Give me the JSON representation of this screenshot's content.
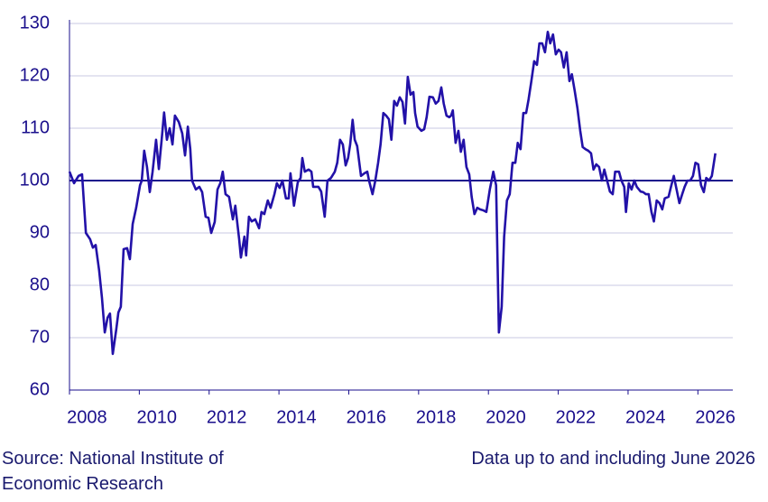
{
  "chart_data": {
    "type": "line",
    "source": "Source: National Institute of Economic Research",
    "note": "Data up to and including June 2026",
    "color": "#2211a8",
    "grid": true,
    "reference_line": 100,
    "xlim": [
      2008,
      2027
    ],
    "xticks": [
      2008,
      2010,
      2012,
      2014,
      2016,
      2018,
      2020,
      2022,
      2024,
      2026
    ],
    "ylim": [
      60,
      130
    ],
    "yticks": [
      60,
      70,
      80,
      90,
      100,
      110,
      120,
      130
    ],
    "x": [
      2008.0,
      2008.13,
      2008.26,
      2008.36,
      2008.47,
      2008.59,
      2008.67,
      2008.75,
      2008.85,
      2008.93,
      2009.01,
      2009.09,
      2009.16,
      2009.24,
      2009.34,
      2009.4,
      2009.47,
      2009.55,
      2009.65,
      2009.73,
      2009.81,
      2009.91,
      2010.02,
      2010.07,
      2010.14,
      2010.22,
      2010.3,
      2010.38,
      2010.48,
      2010.56,
      2010.64,
      2010.71,
      2010.79,
      2010.87,
      2010.95,
      2011.02,
      2011.13,
      2011.23,
      2011.31,
      2011.39,
      2011.46,
      2011.51,
      2011.62,
      2011.72,
      2011.8,
      2011.9,
      2011.98,
      2012.06,
      2012.16,
      2012.24,
      2012.32,
      2012.39,
      2012.47,
      2012.57,
      2012.68,
      2012.75,
      2012.86,
      2012.91,
      2013.01,
      2013.06,
      2013.14,
      2013.22,
      2013.32,
      2013.43,
      2013.5,
      2013.58,
      2013.68,
      2013.76,
      2013.87,
      2013.94,
      2014.02,
      2014.1,
      2014.2,
      2014.28,
      2014.33,
      2014.43,
      2014.54,
      2014.62,
      2014.67,
      2014.74,
      2014.85,
      2014.93,
      2014.98,
      2015.05,
      2015.13,
      2015.21,
      2015.31,
      2015.39,
      2015.49,
      2015.6,
      2015.67,
      2015.75,
      2015.83,
      2015.91,
      2015.98,
      2016.04,
      2016.11,
      2016.17,
      2016.24,
      2016.35,
      2016.45,
      2016.53,
      2016.58,
      2016.68,
      2016.76,
      2016.84,
      2016.91,
      2016.99,
      2017.07,
      2017.15,
      2017.22,
      2017.3,
      2017.38,
      2017.46,
      2017.54,
      2017.61,
      2017.69,
      2017.77,
      2017.85,
      2017.9,
      2017.97,
      2018.08,
      2018.16,
      2018.23,
      2018.31,
      2018.41,
      2018.49,
      2018.57,
      2018.65,
      2018.72,
      2018.8,
      2018.88,
      2018.93,
      2018.98,
      2019.06,
      2019.14,
      2019.21,
      2019.29,
      2019.37,
      2019.45,
      2019.52,
      2019.6,
      2019.68,
      2019.76,
      2019.86,
      2019.94,
      2020.04,
      2020.14,
      2020.22,
      2020.3,
      2020.38,
      2020.45,
      2020.53,
      2020.61,
      2020.69,
      2020.77,
      2020.84,
      2020.92,
      2021.0,
      2021.08,
      2021.15,
      2021.23,
      2021.31,
      2021.39,
      2021.46,
      2021.54,
      2021.62,
      2021.7,
      2021.77,
      2021.85,
      2021.93,
      2022.01,
      2022.08,
      2022.16,
      2022.24,
      2022.32,
      2022.39,
      2022.47,
      2022.55,
      2022.63,
      2022.7,
      2022.78,
      2022.86,
      2022.94,
      2023.01,
      2023.09,
      2023.17,
      2023.25,
      2023.32,
      2023.4,
      2023.48,
      2023.56,
      2023.63,
      2023.74,
      2023.81,
      2023.89,
      2023.94,
      2024.02,
      2024.1,
      2024.18,
      2024.25,
      2024.36,
      2024.43,
      2024.51,
      2024.59,
      2024.67,
      2024.74,
      2024.82,
      2024.9,
      2024.98,
      2025.05,
      2025.16,
      2025.24,
      2025.31,
      2025.39,
      2025.47,
      2025.55,
      2025.62,
      2025.7,
      2025.78,
      2025.86,
      2025.93,
      2026.01,
      2026.09,
      2026.17,
      2026.24,
      2026.32,
      2026.4,
      2026.5
    ],
    "values": [
      101.7,
      99.5,
      100.9,
      101.2,
      90,
      88.8,
      87.2,
      87.7,
      82.8,
      77.6,
      71,
      73.8,
      74.6,
      66.9,
      71.6,
      74.8,
      75.9,
      86.9,
      87.1,
      85,
      91.7,
      94.8,
      99.1,
      100,
      105.7,
      102.6,
      97.8,
      101.7,
      107.8,
      102.2,
      107.8,
      113,
      107.8,
      110,
      106.9,
      112.4,
      111.2,
      109,
      104.8,
      110.3,
      106,
      100,
      98.3,
      98.8,
      97.8,
      93.1,
      92.9,
      90,
      92.1,
      98.3,
      99.5,
      101.7,
      97.4,
      96.9,
      92.6,
      95.2,
      88.8,
      85.3,
      89.3,
      85.7,
      93.1,
      92.2,
      92.6,
      90.9,
      94,
      93.6,
      96.2,
      94.8,
      97.4,
      99.5,
      98.6,
      100,
      96.6,
      96.6,
      101.4,
      95.2,
      99.7,
      100.5,
      104.3,
      101.7,
      102.1,
      101.7,
      98.8,
      98.8,
      98.8,
      97.9,
      93.1,
      100,
      100.5,
      101.7,
      103.4,
      107.8,
      106.9,
      102.9,
      104.3,
      106.9,
      111.6,
      107.8,
      106.6,
      100.9,
      101.4,
      101.7,
      100,
      97.4,
      100,
      103.4,
      106.9,
      112.9,
      112.4,
      111.7,
      107.8,
      115.2,
      114.3,
      115.9,
      115,
      110.9,
      119.8,
      116.4,
      116.9,
      112.9,
      110.3,
      109.5,
      109.8,
      112.1,
      116,
      115.9,
      114.7,
      115.2,
      117.8,
      114.7,
      112.4,
      112.1,
      112.4,
      113.4,
      107.2,
      109.5,
      105.5,
      107.8,
      102.6,
      101.2,
      96.9,
      93.6,
      94.8,
      94.5,
      94.3,
      94,
      98.3,
      101.7,
      99.1,
      71,
      75.9,
      89.3,
      96.2,
      97.4,
      103.4,
      103.4,
      107.2,
      106,
      112.9,
      112.9,
      115.5,
      119,
      122.8,
      122.1,
      126.2,
      126.2,
      124.5,
      128.4,
      126.2,
      127.9,
      124.1,
      125,
      124.5,
      121.6,
      124.5,
      119,
      120.3,
      117.2,
      113.8,
      109.5,
      106.4,
      106,
      105.7,
      105.2,
      102.1,
      103.1,
      102.6,
      100,
      102.1,
      100,
      97.9,
      97.4,
      101.7,
      101.7,
      100,
      98.8,
      94,
      99.5,
      98.3,
      100,
      98.8,
      97.9,
      97.8,
      97.4,
      97.4,
      94,
      92.2,
      96.2,
      95.7,
      94.5,
      96.6,
      96.9,
      99.1,
      100.9,
      98.3,
      95.7,
      97.4,
      98.8,
      100,
      100,
      100.9,
      103.4,
      103.1,
      99.1,
      97.8,
      100.5,
      100,
      100.9,
      105.2
    ]
  }
}
